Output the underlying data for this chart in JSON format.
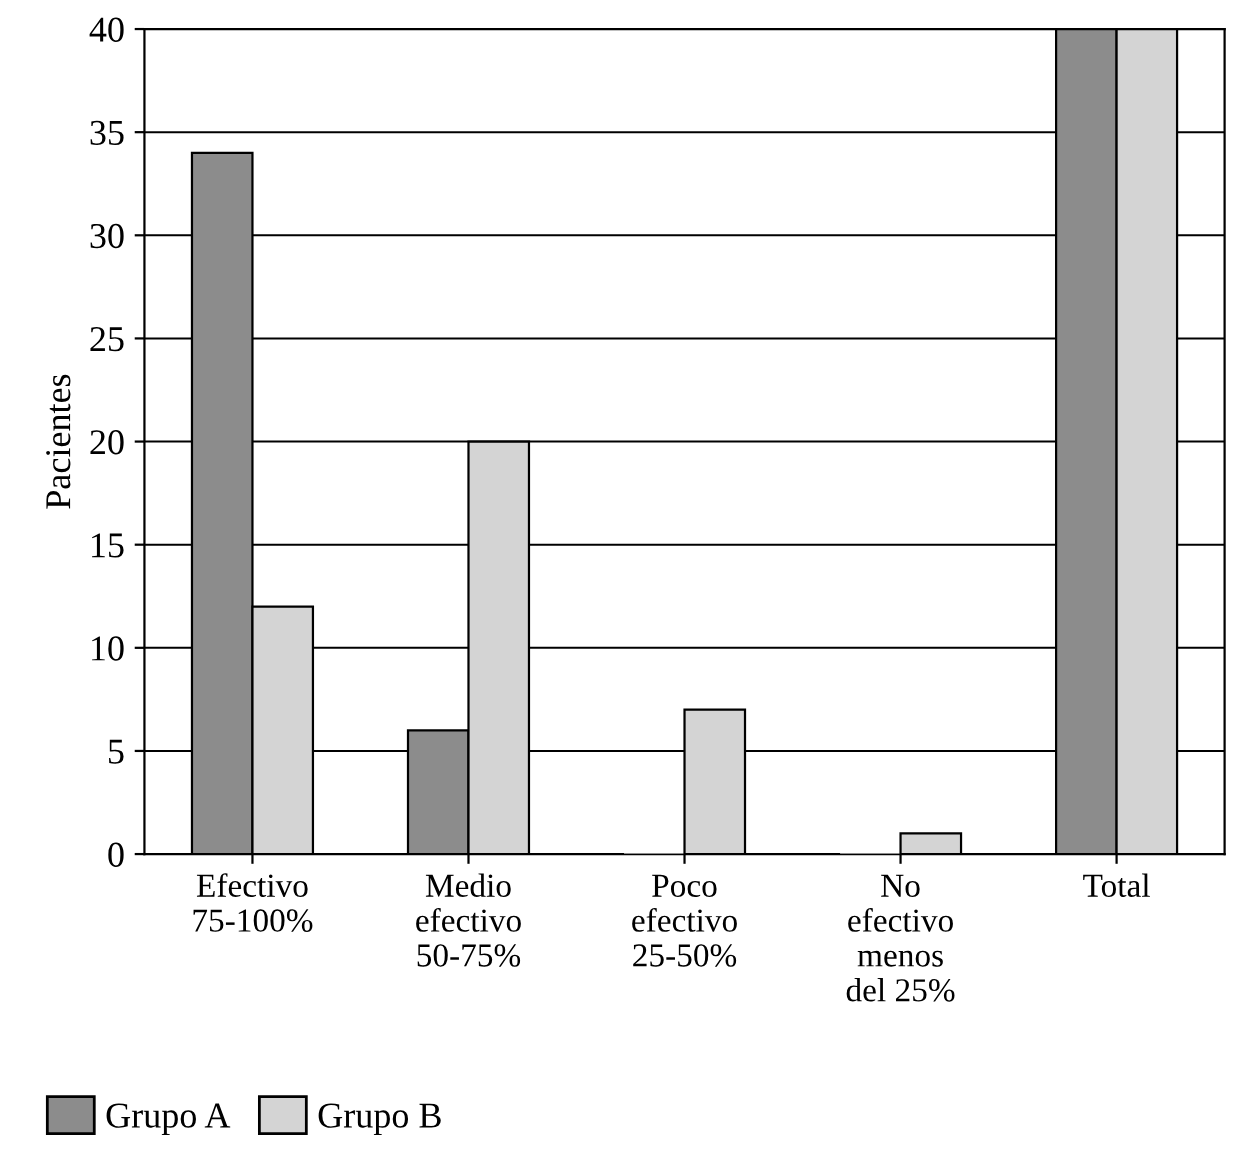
{
  "chart_data": {
    "type": "bar",
    "ylabel": "Pacientes",
    "categories": [
      "Efectivo\n75-100%",
      "Medio\nefectivo\n50-75%",
      "Poco\nefectivo\n25-50%",
      "No\nefectivo\nmenos\ndel 25%",
      "Total"
    ],
    "series": [
      {
        "name": "Grupo A",
        "color": "#8c8c8c",
        "values": [
          34,
          6,
          0,
          0,
          40
        ]
      },
      {
        "name": "Grupo B",
        "color": "#d4d4d4",
        "values": [
          12,
          20,
          7,
          1,
          40
        ]
      }
    ],
    "ylim": [
      0,
      40
    ],
    "yticks": [
      0,
      5,
      10,
      15,
      20,
      25,
      30,
      35,
      40
    ],
    "grid": "y",
    "legend": "bottom left"
  }
}
